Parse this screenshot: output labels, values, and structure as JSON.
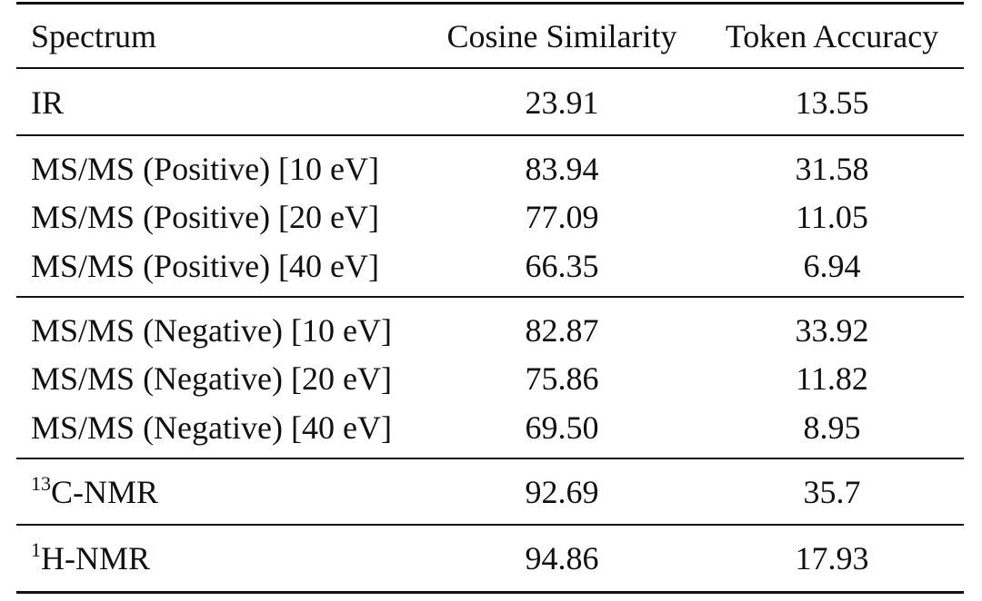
{
  "table": {
    "headers": [
      "Spectrum",
      "Cosine Similarity",
      "Token Accuracy"
    ],
    "rows": [
      {
        "sup": "",
        "spectrum": "IR",
        "cosine": "23.91",
        "token": "13.55"
      },
      {
        "sup": "",
        "spectrum": "MS/MS (Positive) [10 eV]",
        "cosine": "83.94",
        "token": "31.58"
      },
      {
        "sup": "",
        "spectrum": "MS/MS (Positive) [20 eV]",
        "cosine": "77.09",
        "token": "11.05"
      },
      {
        "sup": "",
        "spectrum": "MS/MS (Positive) [40 eV]",
        "cosine": "66.35",
        "token": "6.94"
      },
      {
        "sup": "",
        "spectrum": "MS/MS (Negative) [10 eV]",
        "cosine": "82.87",
        "token": "33.92"
      },
      {
        "sup": "",
        "spectrum": "MS/MS (Negative) [20 eV]",
        "cosine": "75.86",
        "token": "11.82"
      },
      {
        "sup": "",
        "spectrum": "MS/MS (Negative) [40 eV]",
        "cosine": "69.50",
        "token": "8.95"
      },
      {
        "sup": "13",
        "spectrum": "C-NMR",
        "cosine": "92.69",
        "token": "35.7"
      },
      {
        "sup": "1",
        "spectrum": "H-NMR",
        "cosine": "94.86",
        "token": "17.93"
      }
    ]
  }
}
